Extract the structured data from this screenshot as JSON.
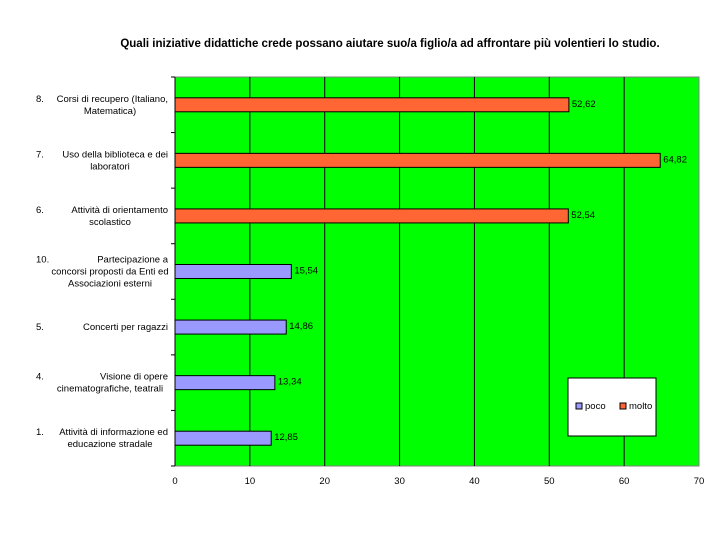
{
  "chart_data": {
    "type": "bar",
    "orientation": "horizontal",
    "title": "Quali iniziative didattiche crede possano aiutare suo/a figlio/a ad affrontare più volentieri lo studio.",
    "xlabel": "",
    "ylabel": "",
    "xlim": [
      0,
      70
    ],
    "x_ticks": [
      "0",
      "10",
      "20",
      "30",
      "40",
      "50",
      "60",
      "70"
    ],
    "grid": "vertical",
    "background_color": "#00ff00",
    "legend_position": "bottom-right",
    "categories": [
      {
        "number": "8.",
        "text": "Corsi di recupero (Italiano, Matematica)",
        "lines": [
          "Corsi di recupero (Italiano,",
          "Matematica)"
        ]
      },
      {
        "number": "7.",
        "text": "Uso della biblioteca e dei laboratori",
        "lines": [
          "Uso della biblioteca e dei",
          "laboratori"
        ]
      },
      {
        "number": "6.",
        "text": "Attività di orientamento scolastico",
        "lines": [
          "Attività di orientamento",
          "scolastico"
        ]
      },
      {
        "number": "10.",
        "text": "Partecipazione a concorsi proposti da Enti ed Associazioni esterni",
        "lines": [
          "Partecipazione a",
          "concorsi proposti da Enti ed",
          "Associazioni esterni"
        ]
      },
      {
        "number": "5.",
        "text": "Concerti per ragazzi",
        "lines": [
          "Concerti per ragazzi"
        ]
      },
      {
        "number": "4.",
        "text": "Visione di opere cinematografiche, teatrali",
        "lines": [
          "Visione di opere",
          "cinematografiche, teatrali"
        ]
      },
      {
        "number": "1.",
        "text": "Attività di informazione ed educazione stradale",
        "lines": [
          "Attività di informazione ed",
          "educazione stradale"
        ]
      }
    ],
    "series": [
      {
        "name": "poco",
        "color": "#9999ff"
      },
      {
        "name": "molto",
        "color": "#ff6633"
      }
    ],
    "bars": [
      {
        "series": "molto",
        "value": 52.62,
        "label": "52,62"
      },
      {
        "series": "molto",
        "value": 64.82,
        "label": "64,82"
      },
      {
        "series": "molto",
        "value": 52.54,
        "label": "52,54"
      },
      {
        "series": "poco",
        "value": 15.54,
        "label": "15,54"
      },
      {
        "series": "poco",
        "value": 14.86,
        "label": "14,86"
      },
      {
        "series": "poco",
        "value": 13.34,
        "label": "13,34"
      },
      {
        "series": "poco",
        "value": 12.85,
        "label": "12,85"
      }
    ]
  }
}
